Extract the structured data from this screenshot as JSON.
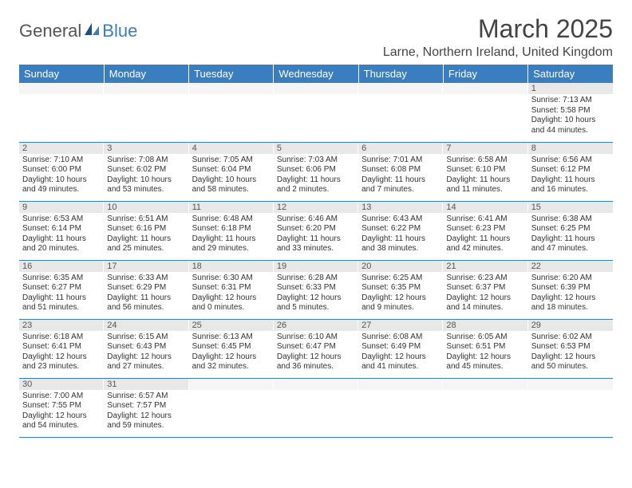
{
  "logo": {
    "text1": "General",
    "text2": "Blue"
  },
  "title": "March 2025",
  "location": "Larne, Northern Ireland, United Kingdom",
  "columns": [
    "Sunday",
    "Monday",
    "Tuesday",
    "Wednesday",
    "Thursday",
    "Friday",
    "Saturday"
  ],
  "colors": {
    "header_bg": "#3a7ebf",
    "header_fg": "#ffffff",
    "daynum_bg": "#e8e8e8",
    "divider": "#3a7ebf",
    "title_color": "#444444",
    "text_color": "#333333",
    "logo_gray": "#555555",
    "logo_blue": "#3a7ebf"
  },
  "typography": {
    "title_fontsize": 32,
    "location_fontsize": 16,
    "header_fontsize": 13,
    "daynum_fontsize": 11,
    "body_fontsize": 10
  },
  "weeks": [
    [
      null,
      null,
      null,
      null,
      null,
      null,
      {
        "n": "1",
        "sr": "Sunrise: 7:13 AM",
        "ss": "Sunset: 5:58 PM",
        "d1": "Daylight: 10 hours",
        "d2": "and 44 minutes."
      }
    ],
    [
      {
        "n": "2",
        "sr": "Sunrise: 7:10 AM",
        "ss": "Sunset: 6:00 PM",
        "d1": "Daylight: 10 hours",
        "d2": "and 49 minutes."
      },
      {
        "n": "3",
        "sr": "Sunrise: 7:08 AM",
        "ss": "Sunset: 6:02 PM",
        "d1": "Daylight: 10 hours",
        "d2": "and 53 minutes."
      },
      {
        "n": "4",
        "sr": "Sunrise: 7:05 AM",
        "ss": "Sunset: 6:04 PM",
        "d1": "Daylight: 10 hours",
        "d2": "and 58 minutes."
      },
      {
        "n": "5",
        "sr": "Sunrise: 7:03 AM",
        "ss": "Sunset: 6:06 PM",
        "d1": "Daylight: 11 hours",
        "d2": "and 2 minutes."
      },
      {
        "n": "6",
        "sr": "Sunrise: 7:01 AM",
        "ss": "Sunset: 6:08 PM",
        "d1": "Daylight: 11 hours",
        "d2": "and 7 minutes."
      },
      {
        "n": "7",
        "sr": "Sunrise: 6:58 AM",
        "ss": "Sunset: 6:10 PM",
        "d1": "Daylight: 11 hours",
        "d2": "and 11 minutes."
      },
      {
        "n": "8",
        "sr": "Sunrise: 6:56 AM",
        "ss": "Sunset: 6:12 PM",
        "d1": "Daylight: 11 hours",
        "d2": "and 16 minutes."
      }
    ],
    [
      {
        "n": "9",
        "sr": "Sunrise: 6:53 AM",
        "ss": "Sunset: 6:14 PM",
        "d1": "Daylight: 11 hours",
        "d2": "and 20 minutes."
      },
      {
        "n": "10",
        "sr": "Sunrise: 6:51 AM",
        "ss": "Sunset: 6:16 PM",
        "d1": "Daylight: 11 hours",
        "d2": "and 25 minutes."
      },
      {
        "n": "11",
        "sr": "Sunrise: 6:48 AM",
        "ss": "Sunset: 6:18 PM",
        "d1": "Daylight: 11 hours",
        "d2": "and 29 minutes."
      },
      {
        "n": "12",
        "sr": "Sunrise: 6:46 AM",
        "ss": "Sunset: 6:20 PM",
        "d1": "Daylight: 11 hours",
        "d2": "and 33 minutes."
      },
      {
        "n": "13",
        "sr": "Sunrise: 6:43 AM",
        "ss": "Sunset: 6:22 PM",
        "d1": "Daylight: 11 hours",
        "d2": "and 38 minutes."
      },
      {
        "n": "14",
        "sr": "Sunrise: 6:41 AM",
        "ss": "Sunset: 6:23 PM",
        "d1": "Daylight: 11 hours",
        "d2": "and 42 minutes."
      },
      {
        "n": "15",
        "sr": "Sunrise: 6:38 AM",
        "ss": "Sunset: 6:25 PM",
        "d1": "Daylight: 11 hours",
        "d2": "and 47 minutes."
      }
    ],
    [
      {
        "n": "16",
        "sr": "Sunrise: 6:35 AM",
        "ss": "Sunset: 6:27 PM",
        "d1": "Daylight: 11 hours",
        "d2": "and 51 minutes."
      },
      {
        "n": "17",
        "sr": "Sunrise: 6:33 AM",
        "ss": "Sunset: 6:29 PM",
        "d1": "Daylight: 11 hours",
        "d2": "and 56 minutes."
      },
      {
        "n": "18",
        "sr": "Sunrise: 6:30 AM",
        "ss": "Sunset: 6:31 PM",
        "d1": "Daylight: 12 hours",
        "d2": "and 0 minutes."
      },
      {
        "n": "19",
        "sr": "Sunrise: 6:28 AM",
        "ss": "Sunset: 6:33 PM",
        "d1": "Daylight: 12 hours",
        "d2": "and 5 minutes."
      },
      {
        "n": "20",
        "sr": "Sunrise: 6:25 AM",
        "ss": "Sunset: 6:35 PM",
        "d1": "Daylight: 12 hours",
        "d2": "and 9 minutes."
      },
      {
        "n": "21",
        "sr": "Sunrise: 6:23 AM",
        "ss": "Sunset: 6:37 PM",
        "d1": "Daylight: 12 hours",
        "d2": "and 14 minutes."
      },
      {
        "n": "22",
        "sr": "Sunrise: 6:20 AM",
        "ss": "Sunset: 6:39 PM",
        "d1": "Daylight: 12 hours",
        "d2": "and 18 minutes."
      }
    ],
    [
      {
        "n": "23",
        "sr": "Sunrise: 6:18 AM",
        "ss": "Sunset: 6:41 PM",
        "d1": "Daylight: 12 hours",
        "d2": "and 23 minutes."
      },
      {
        "n": "24",
        "sr": "Sunrise: 6:15 AM",
        "ss": "Sunset: 6:43 PM",
        "d1": "Daylight: 12 hours",
        "d2": "and 27 minutes."
      },
      {
        "n": "25",
        "sr": "Sunrise: 6:13 AM",
        "ss": "Sunset: 6:45 PM",
        "d1": "Daylight: 12 hours",
        "d2": "and 32 minutes."
      },
      {
        "n": "26",
        "sr": "Sunrise: 6:10 AM",
        "ss": "Sunset: 6:47 PM",
        "d1": "Daylight: 12 hours",
        "d2": "and 36 minutes."
      },
      {
        "n": "27",
        "sr": "Sunrise: 6:08 AM",
        "ss": "Sunset: 6:49 PM",
        "d1": "Daylight: 12 hours",
        "d2": "and 41 minutes."
      },
      {
        "n": "28",
        "sr": "Sunrise: 6:05 AM",
        "ss": "Sunset: 6:51 PM",
        "d1": "Daylight: 12 hours",
        "d2": "and 45 minutes."
      },
      {
        "n": "29",
        "sr": "Sunrise: 6:02 AM",
        "ss": "Sunset: 6:53 PM",
        "d1": "Daylight: 12 hours",
        "d2": "and 50 minutes."
      }
    ],
    [
      {
        "n": "30",
        "sr": "Sunrise: 7:00 AM",
        "ss": "Sunset: 7:55 PM",
        "d1": "Daylight: 12 hours",
        "d2": "and 54 minutes."
      },
      {
        "n": "31",
        "sr": "Sunrise: 6:57 AM",
        "ss": "Sunset: 7:57 PM",
        "d1": "Daylight: 12 hours",
        "d2": "and 59 minutes."
      },
      null,
      null,
      null,
      null,
      null
    ]
  ]
}
